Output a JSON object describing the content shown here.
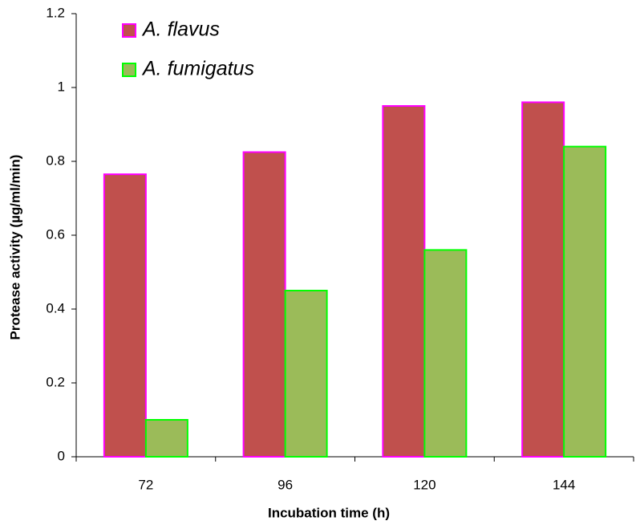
{
  "chart_data": {
    "type": "bar",
    "x_label": "Incubation time (h)",
    "y_label": "Protease activity (µg/ml/min)",
    "categories": [
      "72",
      "96",
      "120",
      "144"
    ],
    "series": [
      {
        "name": "A. flavus",
        "color": "#c0504d",
        "edgecolor": "#ff00ff",
        "values": [
          0.765,
          0.825,
          0.95,
          0.96
        ]
      },
      {
        "name": "A. fumigatus",
        "color": "#9bbb59",
        "edgecolor": "#00ff00",
        "values": [
          0.1,
          0.45,
          0.56,
          0.84
        ]
      }
    ],
    "ylim": [
      0,
      1.2
    ],
    "yticks": [
      0,
      0.2,
      0.4,
      0.6,
      0.8,
      1,
      1.2
    ],
    "grid": false,
    "legend": "upper left"
  }
}
